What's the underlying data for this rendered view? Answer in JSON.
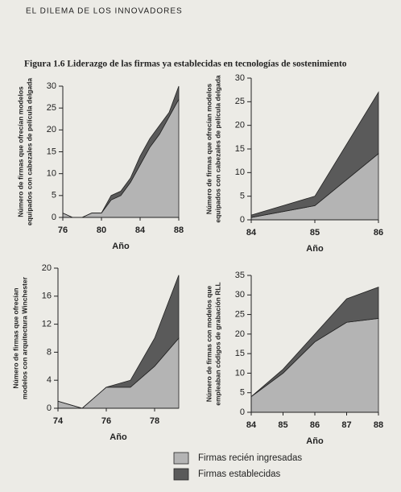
{
  "page_header": "EL DILEMA DE LOS INNOVADORES",
  "figure_title": "Figura 1.6  Liderazgo de las firmas ya establecidas en tecnologías de sostenimiento",
  "legend": [
    {
      "name": "Firmas recién ingresadas",
      "color": "#b4b4b4"
    },
    {
      "name": "Firmas establecidas",
      "color": "#5a5a5a"
    }
  ],
  "chart_data": [
    {
      "type": "area",
      "stacked": true,
      "x_label": "Año",
      "y_label": [
        "Número de firmas que ofrecían modelos",
        "equipados con cabezales de película delgada"
      ],
      "x": [
        76,
        77,
        78,
        79,
        80,
        81,
        82,
        83,
        84,
        85,
        86,
        87,
        88
      ],
      "series": [
        {
          "values": [
            1,
            0,
            0,
            1,
            1,
            4,
            5,
            8,
            12,
            16,
            19,
            23,
            27
          ]
        },
        {
          "values": [
            0,
            0,
            0,
            0,
            0,
            1,
            1,
            1,
            2,
            2,
            2,
            1,
            3
          ]
        }
      ],
      "xlim": [
        76,
        88
      ],
      "xticks": [
        76,
        80,
        84,
        88
      ],
      "ylim": [
        0,
        30
      ],
      "yticks": [
        0,
        5,
        10,
        15,
        20,
        25,
        30
      ]
    },
    {
      "type": "area",
      "stacked": true,
      "x_label": "Año",
      "y_label": [
        "Número de firmas que ofrecían modelos",
        "equipados con cabezales de película delgada"
      ],
      "x": [
        84,
        85,
        86
      ],
      "series": [
        {
          "values": [
            0.5,
            3,
            14
          ]
        },
        {
          "values": [
            0.5,
            2,
            13
          ]
        }
      ],
      "xlim": [
        84,
        86
      ],
      "xticks": [
        84,
        85,
        86
      ],
      "ylim": [
        0,
        30
      ],
      "yticks": [
        0,
        5,
        10,
        15,
        20,
        25,
        30
      ]
    },
    {
      "type": "area",
      "stacked": true,
      "x_label": "Año",
      "y_label": [
        "Número de firmas que ofrecían",
        "modelos con arquitectura Winchester"
      ],
      "x": [
        74,
        75,
        76,
        77,
        78,
        79
      ],
      "series": [
        {
          "values": [
            1,
            0,
            3,
            3,
            6,
            10
          ]
        },
        {
          "values": [
            0,
            0,
            0,
            1,
            4,
            9
          ]
        }
      ],
      "xlim": [
        74,
        79
      ],
      "xticks": [
        74,
        76,
        78
      ],
      "ylim": [
        0,
        20
      ],
      "yticks": [
        0,
        4,
        8,
        12,
        16,
        20
      ]
    },
    {
      "type": "area",
      "stacked": true,
      "x_label": "Año",
      "y_label": [
        "Número de firmas con modelos que",
        "empleaban códigos de grabación RLL"
      ],
      "x": [
        84,
        85,
        86,
        87,
        88
      ],
      "series": [
        {
          "values": [
            4,
            10,
            18,
            23,
            24
          ]
        },
        {
          "values": [
            0,
            1,
            2,
            6,
            8
          ]
        }
      ],
      "xlim": [
        84,
        88
      ],
      "xticks": [
        84,
        85,
        86,
        87,
        88
      ],
      "ylim": [
        0,
        35
      ],
      "yticks": [
        0,
        5,
        10,
        15,
        20,
        25,
        30,
        35
      ]
    }
  ]
}
